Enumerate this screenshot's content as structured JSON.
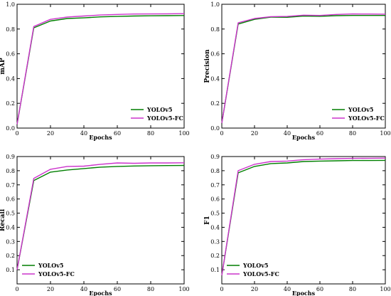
{
  "chart_data": [
    {
      "type": "line",
      "title": "",
      "xlabel": "Epochs",
      "ylabel": "mAP",
      "xlim": [
        0,
        100
      ],
      "ylim": [
        0,
        1.0
      ],
      "x_ticks": [
        "0",
        "20",
        "40",
        "60",
        "80",
        "100"
      ],
      "y_ticks": [
        "0.0",
        "0.2",
        "0.4",
        "0.6",
        "0.8",
        "1.0"
      ],
      "grid": false,
      "legend_position": "lower-right",
      "x": [
        0,
        10,
        20,
        30,
        40,
        50,
        60,
        70,
        80,
        90,
        100
      ],
      "series": [
        {
          "name": "YOLOv5",
          "color": "#007f00",
          "values": [
            0.03,
            0.81,
            0.865,
            0.885,
            0.89,
            0.898,
            0.902,
            0.905,
            0.907,
            0.908,
            0.909
          ]
        },
        {
          "name": "YOLOv5-FC",
          "color": "#cc33cc",
          "values": [
            0.03,
            0.82,
            0.878,
            0.897,
            0.905,
            0.913,
            0.918,
            0.921,
            0.922,
            0.923,
            0.924
          ]
        }
      ]
    },
    {
      "type": "line",
      "title": "",
      "xlabel": "Epochs",
      "ylabel": "Precision",
      "xlim": [
        0,
        100
      ],
      "ylim": [
        0,
        1.0
      ],
      "x_ticks": [
        "0",
        "20",
        "40",
        "60",
        "80",
        "100"
      ],
      "y_ticks": [
        "0.0",
        "0.2",
        "0.4",
        "0.6",
        "0.8",
        "1.0"
      ],
      "grid": false,
      "legend_position": "lower-right",
      "x": [
        0,
        10,
        20,
        30,
        40,
        50,
        60,
        70,
        80,
        90,
        100
      ],
      "series": [
        {
          "name": "YOLOv5",
          "color": "#007f00",
          "values": [
            0.04,
            0.84,
            0.878,
            0.896,
            0.895,
            0.905,
            0.903,
            0.908,
            0.91,
            0.91,
            0.91
          ]
        },
        {
          "name": "YOLOv5-FC",
          "color": "#cc33cc",
          "values": [
            0.04,
            0.85,
            0.885,
            0.9,
            0.902,
            0.912,
            0.91,
            0.918,
            0.922,
            0.921,
            0.92
          ]
        }
      ]
    },
    {
      "type": "line",
      "title": "",
      "xlabel": "Epochs",
      "ylabel": "Recall",
      "xlim": [
        0,
        100
      ],
      "ylim": [
        0,
        0.9
      ],
      "x_ticks": [
        "0",
        "20",
        "40",
        "60",
        "80",
        "100"
      ],
      "y_ticks": [
        "0.1",
        "0.2",
        "0.3",
        "0.4",
        "0.5",
        "0.6",
        "0.7",
        "0.8",
        "0.9"
      ],
      "grid": false,
      "legend_position": "lower-left",
      "x": [
        0,
        10,
        20,
        30,
        40,
        50,
        60,
        70,
        80,
        90,
        100
      ],
      "series": [
        {
          "name": "YOLOv5",
          "color": "#007f00",
          "values": [
            0.1,
            0.73,
            0.79,
            0.805,
            0.815,
            0.825,
            0.83,
            0.833,
            0.835,
            0.836,
            0.837
          ]
        },
        {
          "name": "YOLOv5-FC",
          "color": "#cc33cc",
          "values": [
            0.1,
            0.745,
            0.81,
            0.83,
            0.832,
            0.845,
            0.855,
            0.852,
            0.855,
            0.855,
            0.856
          ]
        }
      ]
    },
    {
      "type": "line",
      "title": "",
      "xlabel": "Epochs",
      "ylabel": "F1",
      "xlim": [
        0,
        100
      ],
      "ylim": [
        0,
        0.9
      ],
      "x_ticks": [
        "0",
        "20",
        "40",
        "60",
        "80",
        "100"
      ],
      "y_ticks": [
        "0.1",
        "0.2",
        "0.3",
        "0.4",
        "0.5",
        "0.6",
        "0.7",
        "0.8",
        "0.9"
      ],
      "grid": false,
      "legend_position": "lower-left",
      "x": [
        0,
        10,
        20,
        30,
        40,
        50,
        60,
        70,
        80,
        90,
        100
      ],
      "series": [
        {
          "name": "YOLOv5",
          "color": "#007f00",
          "values": [
            0.06,
            0.785,
            0.83,
            0.85,
            0.855,
            0.865,
            0.868,
            0.87,
            0.872,
            0.872,
            0.873
          ]
        },
        {
          "name": "YOLOv5-FC",
          "color": "#cc33cc",
          "values": [
            0.06,
            0.8,
            0.845,
            0.865,
            0.868,
            0.878,
            0.882,
            0.885,
            0.887,
            0.888,
            0.889
          ]
        }
      ]
    }
  ]
}
